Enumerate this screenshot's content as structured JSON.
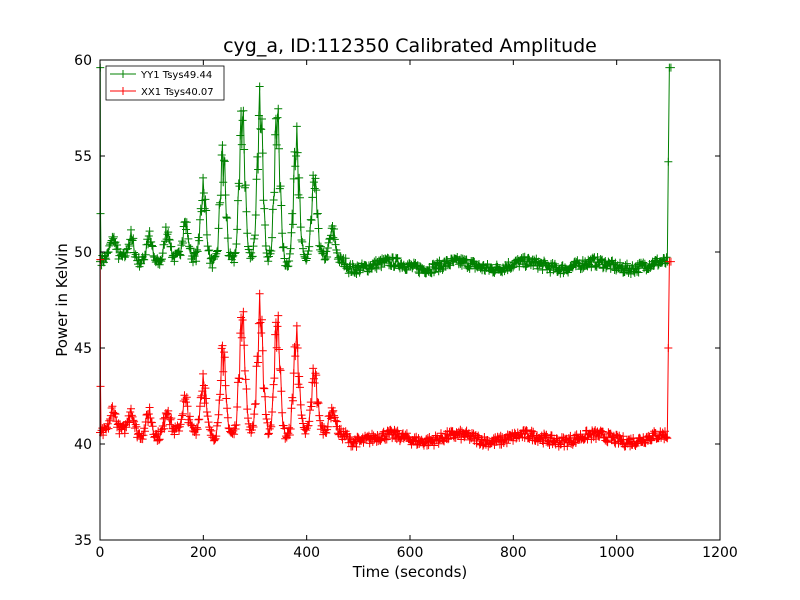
{
  "chart_data": {
    "type": "line",
    "title": "cyg_a, ID:112350 Calibrated Amplitude",
    "xlabel": "Time (seconds)",
    "ylabel": "Power in Kelvin",
    "xlim": [
      0,
      1200
    ],
    "ylim": [
      35,
      60
    ],
    "xticks": [
      0,
      200,
      400,
      600,
      800,
      1000,
      1200
    ],
    "yticks": [
      35,
      40,
      45,
      50,
      55,
      60
    ],
    "grid": false,
    "marker": "+",
    "legend": {
      "placement": "top-left",
      "entries": [
        "YY1 Tsys49.44",
        "XX1 Tsys40.07"
      ]
    },
    "series": [
      {
        "name": "YY1 Tsys49.44",
        "color": "#008000",
        "baseline_level": 49.3,
        "start_spike": [
          [
            0,
            49.5
          ],
          [
            0.5,
            59.6
          ],
          [
            1,
            52.0
          ],
          [
            2,
            49.6
          ]
        ],
        "peaks": [
          [
            25,
            50.3
          ],
          [
            60,
            50.4
          ],
          [
            95,
            50.7
          ],
          [
            130,
            50.8
          ],
          [
            165,
            51.0
          ],
          [
            200,
            52.9
          ],
          [
            238,
            54.7
          ],
          [
            275,
            56.4
          ],
          [
            310,
            56.7
          ],
          [
            343,
            56.5
          ],
          [
            380,
            55.4
          ],
          [
            415,
            53.1
          ],
          [
            450,
            50.7
          ]
        ],
        "end_spike": [
          [
            1098,
            49.5
          ],
          [
            1100,
            54.7
          ],
          [
            1102,
            59.6
          ],
          [
            1105,
            59.6
          ]
        ]
      },
      {
        "name": "XX1 Tsys40.07",
        "color": "#ff0000",
        "baseline_level": 40.3,
        "start_spike": [
          [
            0,
            40.6
          ],
          [
            0.5,
            49.6
          ],
          [
            1,
            43.0
          ],
          [
            2,
            40.6
          ]
        ],
        "peaks": [
          [
            25,
            41.3
          ],
          [
            60,
            41.4
          ],
          [
            95,
            41.5
          ],
          [
            130,
            41.5
          ],
          [
            165,
            41.8
          ],
          [
            200,
            42.9
          ],
          [
            238,
            44.4
          ],
          [
            275,
            46.0
          ],
          [
            310,
            46.2
          ],
          [
            343,
            46.0
          ],
          [
            380,
            45.1
          ],
          [
            415,
            43.2
          ],
          [
            450,
            41.4
          ]
        ],
        "end_spike": [
          [
            1098,
            40.3
          ],
          [
            1100,
            45.0
          ],
          [
            1102,
            49.5
          ],
          [
            1105,
            49.5
          ]
        ]
      }
    ]
  }
}
